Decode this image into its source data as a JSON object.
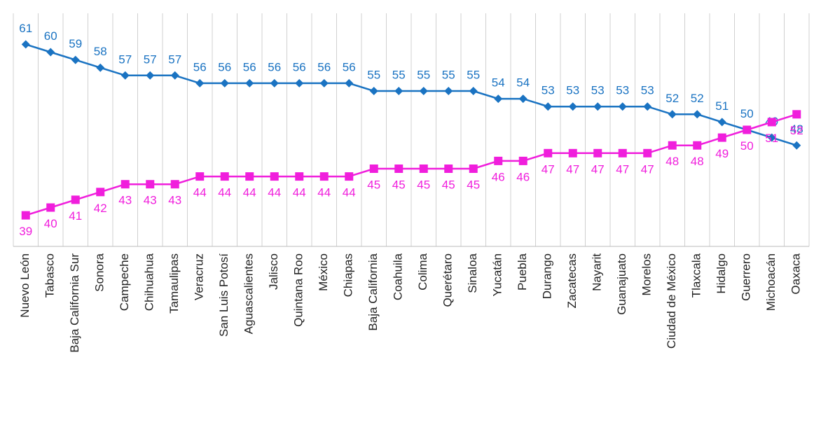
{
  "chart_data": {
    "type": "line",
    "categories": [
      "Nuevo León",
      "Tabasco",
      "Baja California Sur",
      "Sonora",
      "Campeche",
      "Chihuahua",
      "Tamaulipas",
      "Veracruz",
      "San Luis Potosí",
      "Aguascalientes",
      "Jalisco",
      "Quintana Roo",
      "México",
      "Chiapas",
      "Baja California",
      "Coahuila",
      "Colima",
      "Querétaro",
      "Sinaloa",
      "Yucatán",
      "Puebla",
      "Durango",
      "Zacatecas",
      "Nayarit",
      "Guanajuato",
      "Morelos",
      "Ciudad de México",
      "Tlaxcala",
      "Hidalgo",
      "Guerrero",
      "Michoacán",
      "Oaxaca"
    ],
    "series": [
      {
        "color": "#1a73c2",
        "marker": "diamond",
        "label_position": "above",
        "values": [
          61,
          60,
          59,
          58,
          57,
          57,
          57,
          56,
          56,
          56,
          56,
          56,
          56,
          56,
          55,
          55,
          55,
          55,
          55,
          54,
          54,
          53,
          53,
          53,
          53,
          53,
          52,
          52,
          51,
          50,
          49,
          48
        ]
      },
      {
        "color": "#f01edc",
        "marker": "square",
        "label_position": "below",
        "values": [
          39,
          40,
          41,
          42,
          43,
          43,
          43,
          44,
          44,
          44,
          44,
          44,
          44,
          44,
          45,
          45,
          45,
          45,
          45,
          46,
          46,
          47,
          47,
          47,
          47,
          47,
          48,
          48,
          49,
          50,
          51,
          52
        ]
      }
    ],
    "ylim": [
      35,
      65
    ],
    "grid": true
  }
}
